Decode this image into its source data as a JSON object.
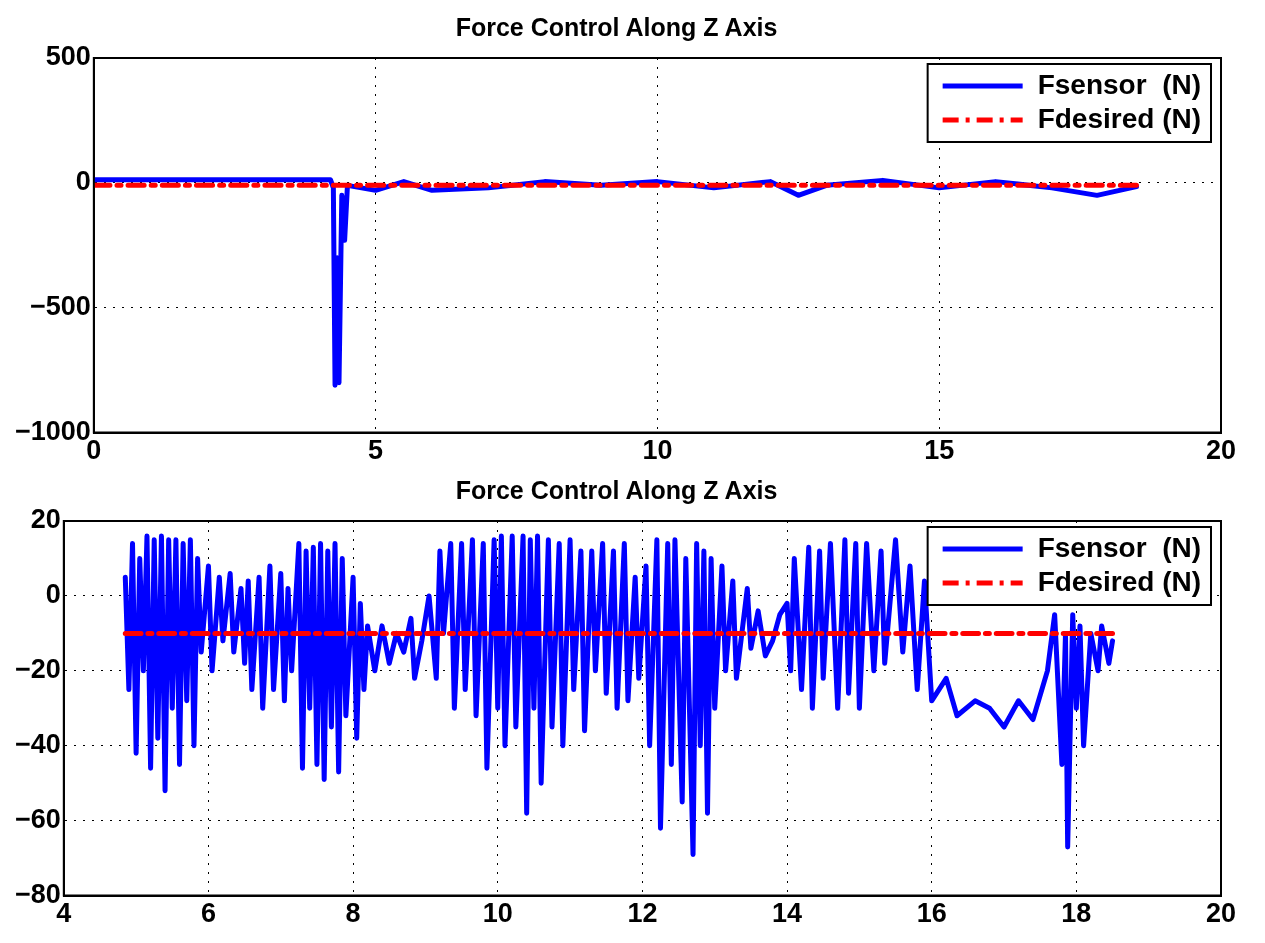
{
  "chart_data": [
    {
      "type": "line",
      "title": "Force Control Along Z Axis",
      "xlim": [
        0,
        20
      ],
      "xticks": [
        0,
        5,
        10,
        15,
        20
      ],
      "ylim": [
        -1000,
        500
      ],
      "yticks": [
        -1000,
        -500,
        0,
        500
      ],
      "grid": true,
      "legend": "top right",
      "series": [
        {
          "name": "Fsensor  (N)",
          "color": "#0000ff",
          "line_style": "solid",
          "x": [
            0,
            4.2,
            4.25,
            4.28,
            4.32,
            4.35,
            4.4,
            4.45,
            4.5,
            5,
            5.5,
            6,
            7,
            8,
            9,
            10,
            11,
            12,
            12.5,
            13,
            14,
            15,
            16,
            17,
            17.8,
            18.5
          ],
          "values": [
            12,
            12,
            -20,
            -810,
            -300,
            -800,
            -50,
            -230,
            -10,
            -30,
            5,
            -30,
            -20,
            5,
            -10,
            5,
            -20,
            5,
            -50,
            -10,
            10,
            -20,
            5,
            -20,
            -50,
            -15
          ]
        },
        {
          "name": "Fdesired (N)",
          "color": "#ff0000",
          "line_style": "dashed",
          "x": [
            0,
            18.5
          ],
          "values": [
            -10,
            -10
          ]
        }
      ]
    },
    {
      "type": "line",
      "title": "Force Control Along Z Axis",
      "xlim": [
        4,
        20
      ],
      "xticks": [
        4,
        6,
        8,
        10,
        12,
        14,
        16,
        18,
        20
      ],
      "ylim": [
        -80,
        20
      ],
      "yticks": [
        -80,
        -60,
        -40,
        -20,
        0,
        20
      ],
      "grid": true,
      "legend": "top right",
      "series": [
        {
          "name": "Fsensor  (N)",
          "color": "#0000ff",
          "line_style": "solid",
          "x": [
            4.85,
            4.9,
            4.95,
            5.0,
            5.05,
            5.1,
            5.15,
            5.2,
            5.25,
            5.3,
            5.35,
            5.4,
            5.45,
            5.5,
            5.55,
            5.6,
            5.65,
            5.7,
            5.75,
            5.8,
            5.85,
            5.9,
            6.0,
            6.05,
            6.15,
            6.2,
            6.3,
            6.35,
            6.45,
            6.5,
            6.55,
            6.6,
            6.7,
            6.75,
            6.85,
            6.9,
            7.0,
            7.05,
            7.1,
            7.15,
            7.25,
            7.3,
            7.35,
            7.4,
            7.45,
            7.5,
            7.55,
            7.6,
            7.65,
            7.7,
            7.75,
            7.8,
            7.85,
            7.9,
            8.0,
            8.05,
            8.1,
            8.15,
            8.2,
            8.3,
            8.4,
            8.5,
            8.6,
            8.7,
            8.8,
            8.85,
            8.95,
            9.05,
            9.15,
            9.2,
            9.25,
            9.35,
            9.4,
            9.5,
            9.55,
            9.65,
            9.7,
            9.8,
            9.85,
            9.95,
            10.0,
            10.05,
            10.1,
            10.2,
            10.25,
            10.35,
            10.4,
            10.45,
            10.5,
            10.55,
            10.6,
            10.7,
            10.75,
            10.85,
            10.9,
            11.0,
            11.05,
            11.15,
            11.2,
            11.3,
            11.35,
            11.45,
            11.5,
            11.6,
            11.65,
            11.75,
            11.8,
            11.9,
            11.95,
            12.05,
            12.1,
            12.2,
            12.25,
            12.35,
            12.4,
            12.45,
            12.55,
            12.6,
            12.7,
            12.75,
            12.8,
            12.85,
            12.9,
            12.95,
            13.0,
            13.1,
            13.15,
            13.25,
            13.3,
            13.45,
            13.5,
            13.6,
            13.7,
            13.8,
            13.9,
            14.0,
            14.05,
            14.1,
            14.2,
            14.3,
            14.35,
            14.45,
            14.5,
            14.6,
            14.7,
            14.8,
            14.85,
            14.95,
            15.0,
            15.1,
            15.2,
            15.3,
            15.35,
            15.5,
            15.6,
            15.7,
            15.8,
            15.9,
            16.0,
            16.1,
            16.2,
            16.3,
            16.35,
            16.5,
            16.6,
            16.7,
            16.8,
            16.9,
            17.0,
            17.1,
            17.2,
            17.3,
            17.4,
            17.5,
            17.6,
            17.7,
            17.8,
            17.85,
            17.88,
            17.95,
            18.0,
            18.05,
            18.1,
            18.2,
            18.3,
            18.35,
            18.45,
            18.5
          ],
          "values": [
            5,
            -25,
            14,
            -42,
            10,
            -20,
            16,
            -46,
            15,
            -38,
            16,
            -52,
            15,
            -30,
            15,
            -45,
            14,
            -28,
            15,
            -40,
            10,
            -15,
            8,
            -20,
            5,
            -12,
            6,
            -15,
            2,
            -18,
            4,
            -25,
            5,
            -30,
            8,
            -25,
            6,
            -28,
            2,
            -20,
            14,
            -46,
            12,
            -30,
            13,
            -45,
            14,
            -49,
            12,
            -35,
            14,
            -47,
            10,
            -32,
            5,
            -38,
            -2,
            -25,
            -8,
            -20,
            -8,
            -18,
            -10,
            -15,
            -6,
            -22,
            -12,
            0,
            -22,
            12,
            -10,
            14,
            -30,
            14,
            -25,
            15,
            -32,
            14,
            -46,
            15,
            -30,
            16,
            -40,
            16,
            -35,
            16,
            -58,
            15,
            -30,
            16,
            -50,
            15,
            -35,
            14,
            -40,
            15,
            -25,
            12,
            -36,
            12,
            -20,
            14,
            -26,
            12,
            -30,
            14,
            -28,
            5,
            -22,
            8,
            -40,
            15,
            -62,
            14,
            -45,
            15,
            -55,
            10,
            -69,
            14,
            -40,
            12,
            -58,
            10,
            -30,
            8,
            -20,
            4,
            -22,
            2,
            -14,
            -4,
            -16,
            -12,
            -5,
            -2,
            -20,
            10,
            -25,
            13,
            -30,
            12,
            -22,
            14,
            -30,
            15,
            -26,
            14,
            -30,
            14,
            -20,
            12,
            -18,
            15,
            -15,
            8,
            -25,
            4,
            -28,
            null,
            -22,
            null,
            -32,
            null,
            -28,
            null,
            -30,
            null,
            -35,
            null,
            -28,
            null,
            -33,
            null,
            -20,
            -5,
            -45,
            -10,
            -67,
            -5,
            -30,
            -8,
            -40,
            -10,
            -20,
            -8,
            -18,
            -12
          ]
        },
        {
          "name": "Fdesired (N)",
          "color": "#ff0000",
          "line_style": "dashed",
          "x": [
            4.85,
            18.5
          ],
          "values": [
            -10,
            -10
          ]
        }
      ]
    }
  ]
}
